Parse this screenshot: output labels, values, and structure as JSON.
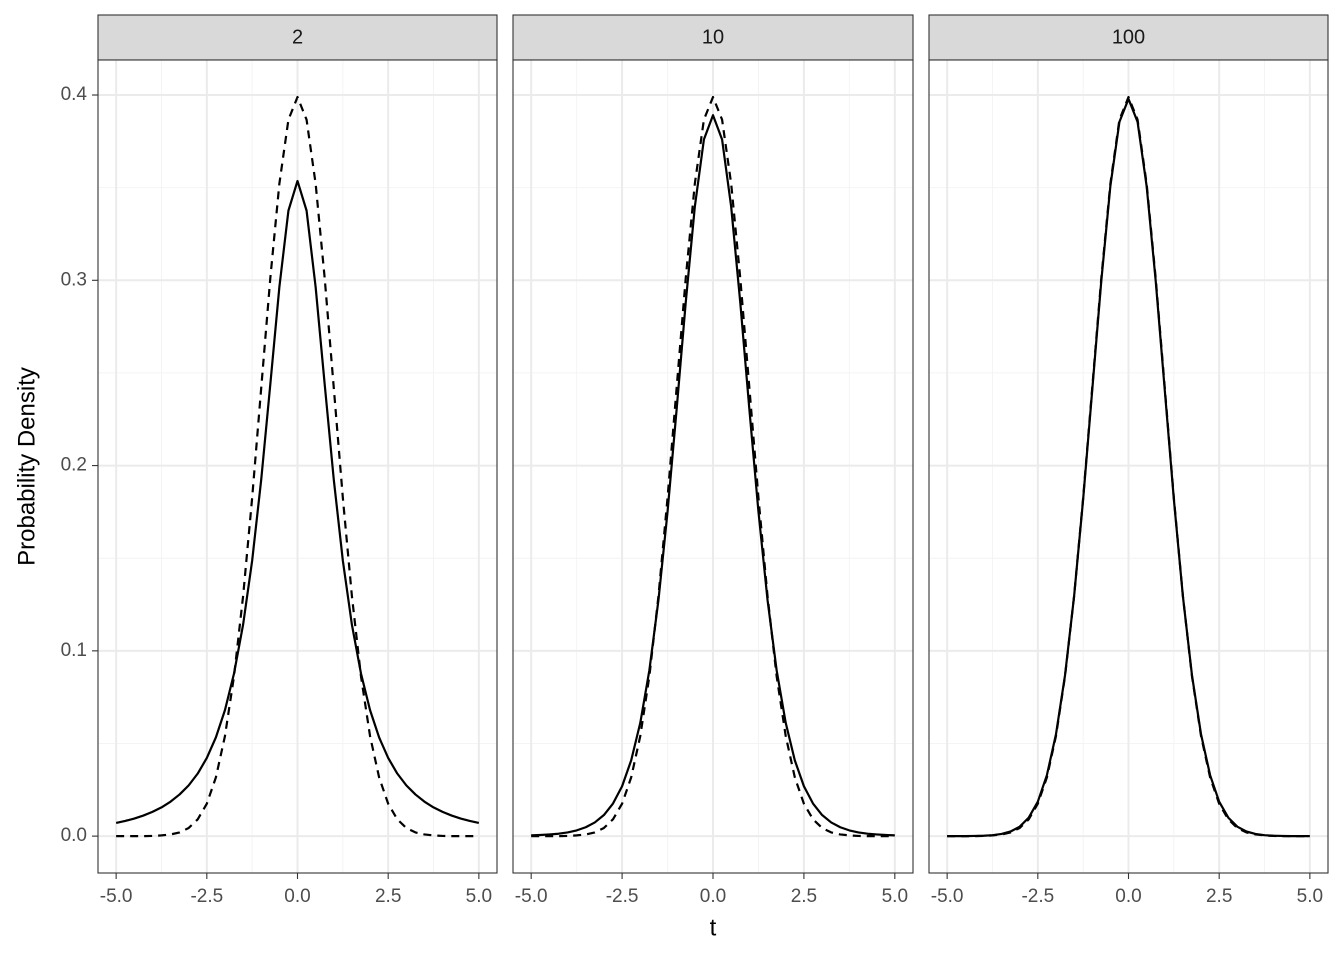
{
  "chart_data": [
    {
      "type": "line",
      "title": "2",
      "ylabel": "Probability Density",
      "x": [
        -5,
        -4.75,
        -4.5,
        -4.25,
        -4,
        -3.75,
        -3.5,
        -3.25,
        -3,
        -2.75,
        -2.5,
        -2.25,
        -2,
        -1.75,
        -1.5,
        -1.25,
        -1,
        -0.75,
        -0.5,
        -0.25,
        0,
        0.25,
        0.5,
        0.75,
        1,
        1.25,
        1.5,
        1.75,
        2,
        2.25,
        2.5,
        2.75,
        3,
        3.25,
        3.5,
        3.75,
        4,
        4.25,
        4.5,
        4.75,
        5
      ],
      "series": [
        {
          "color": "#000000",
          "linestyle": "dashed",
          "values": [
            0.0,
            0.0,
            0.0,
            0.0,
            0.0001,
            0.0004,
            0.0009,
            0.002,
            0.0044,
            0.0091,
            0.0175,
            0.0317,
            0.054,
            0.0863,
            0.1295,
            0.1826,
            0.242,
            0.3011,
            0.3521,
            0.3867,
            0.3989,
            0.3867,
            0.3521,
            0.3011,
            0.242,
            0.1826,
            0.1295,
            0.0863,
            0.054,
            0.0317,
            0.0175,
            0.0091,
            0.0044,
            0.002,
            0.0009,
            0.0004,
            0.0001,
            0.0,
            0.0,
            0.0,
            0.0
          ]
        },
        {
          "color": "#000000",
          "linestyle": "solid",
          "values": [
            0.0071,
            0.0082,
            0.0095,
            0.0111,
            0.0131,
            0.0155,
            0.0186,
            0.0225,
            0.0274,
            0.0338,
            0.0422,
            0.0533,
            0.068,
            0.0878,
            0.1141,
            0.1487,
            0.1925,
            0.2438,
            0.2963,
            0.3376,
            0.3536,
            0.3376,
            0.2963,
            0.2438,
            0.1925,
            0.1487,
            0.1141,
            0.0878,
            0.068,
            0.0533,
            0.0422,
            0.0338,
            0.0274,
            0.0225,
            0.0186,
            0.0155,
            0.0131,
            0.0111,
            0.0095,
            0.0082,
            0.0071
          ]
        }
      ],
      "xlim": [
        -5.5,
        5.5
      ],
      "xticks": [
        {
          "value": -5,
          "label": "-5.0"
        },
        -2.5,
        {
          "value": 0,
          "label": "0.0"
        },
        2.5,
        {
          "value": 5,
          "label": "5.0"
        }
      ],
      "ylim": [
        -0.0199,
        0.4189
      ],
      "yticks": [
        {
          "value": 0,
          "label": "0.0"
        },
        0.1,
        0.2,
        0.3,
        0.4
      ],
      "grid": true
    },
    {
      "type": "line",
      "title": "10",
      "xlabel": "t",
      "x": [
        -5,
        -4.75,
        -4.5,
        -4.25,
        -4,
        -3.75,
        -3.5,
        -3.25,
        -3,
        -2.75,
        -2.5,
        -2.25,
        -2,
        -1.75,
        -1.5,
        -1.25,
        -1,
        -0.75,
        -0.5,
        -0.25,
        0,
        0.25,
        0.5,
        0.75,
        1,
        1.25,
        1.5,
        1.75,
        2,
        2.25,
        2.5,
        2.75,
        3,
        3.25,
        3.5,
        3.75,
        4,
        4.25,
        4.5,
        4.75,
        5
      ],
      "series": [
        {
          "color": "#000000",
          "linestyle": "dashed",
          "values": [
            0.0,
            0.0,
            0.0,
            0.0,
            0.0001,
            0.0004,
            0.0009,
            0.002,
            0.0044,
            0.0091,
            0.0175,
            0.0317,
            0.054,
            0.0863,
            0.1295,
            0.1826,
            0.242,
            0.3011,
            0.3521,
            0.3867,
            0.3989,
            0.3867,
            0.3521,
            0.3011,
            0.242,
            0.1826,
            0.1295,
            0.0863,
            0.054,
            0.0317,
            0.0175,
            0.0091,
            0.0044,
            0.002,
            0.0009,
            0.0004,
            0.0001,
            0.0,
            0.0,
            0.0,
            0.0
          ]
        },
        {
          "color": "#000000",
          "linestyle": "solid",
          "values": [
            0.0004,
            0.0006,
            0.0009,
            0.0013,
            0.002,
            0.0031,
            0.0048,
            0.0074,
            0.0114,
            0.0176,
            0.0269,
            0.0409,
            0.0611,
            0.0895,
            0.1274,
            0.1751,
            0.2304,
            0.288,
            0.3397,
            0.376,
            0.3891,
            0.376,
            0.3397,
            0.288,
            0.2304,
            0.1751,
            0.1274,
            0.0895,
            0.0611,
            0.0409,
            0.0269,
            0.0176,
            0.0114,
            0.0074,
            0.0048,
            0.0031,
            0.002,
            0.0013,
            0.0009,
            0.0006,
            0.0004
          ]
        }
      ],
      "xlim": [
        -5.5,
        5.5
      ],
      "xticks": [
        {
          "value": -5,
          "label": "-5.0"
        },
        -2.5,
        {
          "value": 0,
          "label": "0.0"
        },
        2.5,
        {
          "value": 5,
          "label": "5.0"
        }
      ],
      "ylim": [
        -0.0199,
        0.4189
      ],
      "yticks": [
        {
          "value": 0,
          "label": "0.0"
        },
        0.1,
        0.2,
        0.3,
        0.4
      ],
      "grid": true
    },
    {
      "type": "line",
      "title": "100",
      "x": [
        -5,
        -4.75,
        -4.5,
        -4.25,
        -4,
        -3.75,
        -3.5,
        -3.25,
        -3,
        -2.75,
        -2.5,
        -2.25,
        -2,
        -1.75,
        -1.5,
        -1.25,
        -1,
        -0.75,
        -0.5,
        -0.25,
        0,
        0.25,
        0.5,
        0.75,
        1,
        1.25,
        1.5,
        1.75,
        2,
        2.25,
        2.5,
        2.75,
        3,
        3.25,
        3.5,
        3.75,
        4,
        4.25,
        4.5,
        4.75,
        5
      ],
      "series": [
        {
          "color": "#000000",
          "linestyle": "dashed",
          "values": [
            0.0,
            0.0,
            0.0,
            0.0,
            0.0001,
            0.0004,
            0.0009,
            0.002,
            0.0044,
            0.0091,
            0.0175,
            0.0317,
            0.054,
            0.0863,
            0.1295,
            0.1826,
            0.242,
            0.3011,
            0.3521,
            0.3867,
            0.3989,
            0.3867,
            0.3521,
            0.3011,
            0.242,
            0.1826,
            0.1295,
            0.0863,
            0.054,
            0.0317,
            0.0175,
            0.0091,
            0.0044,
            0.002,
            0.0009,
            0.0004,
            0.0001,
            0.0,
            0.0,
            0.0,
            0.0
          ]
        },
        {
          "color": "#000000",
          "linestyle": "solid",
          "values": [
            0.0,
            0.0,
            0.0,
            0.0001,
            0.0002,
            0.0005,
            0.0012,
            0.0025,
            0.0051,
            0.01,
            0.0186,
            0.0329,
            0.0549,
            0.0868,
            0.1294,
            0.1819,
            0.2407,
            0.2997,
            0.3508,
            0.3855,
            0.3979,
            0.3855,
            0.3508,
            0.2997,
            0.2407,
            0.1819,
            0.1294,
            0.0868,
            0.0549,
            0.0329,
            0.0186,
            0.01,
            0.0051,
            0.0025,
            0.0012,
            0.0005,
            0.0002,
            0.0001,
            0.0,
            0.0,
            0.0
          ]
        }
      ],
      "xlim": [
        -5.5,
        5.5
      ],
      "xticks": [
        {
          "value": -5,
          "label": "-5.0"
        },
        -2.5,
        {
          "value": 0,
          "label": "0.0"
        },
        2.5,
        {
          "value": 5,
          "label": "5.0"
        }
      ],
      "ylim": [
        -0.0199,
        0.4189
      ],
      "yticks": [
        {
          "value": 0,
          "label": "0.0"
        },
        0.1,
        0.2,
        0.3,
        0.4
      ],
      "grid": true
    }
  ]
}
